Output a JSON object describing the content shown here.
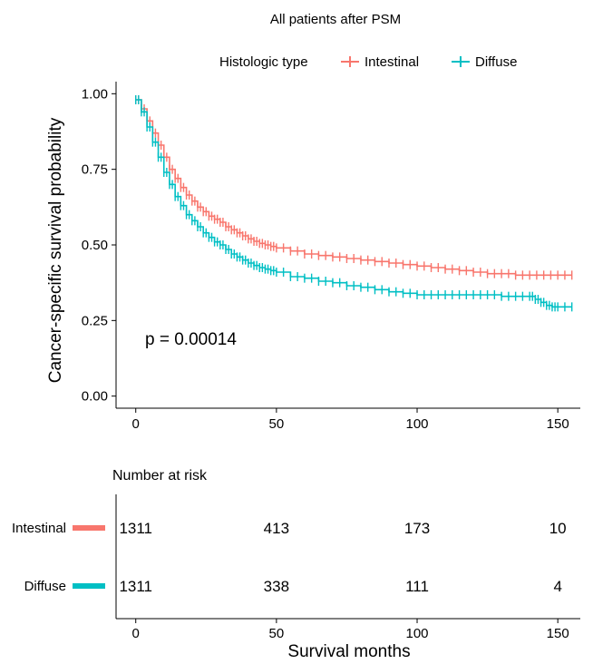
{
  "chart_data": {
    "type": "line",
    "title": "All patients after PSM",
    "xlabel": "",
    "ylabel": "Cancer-specific survival probability",
    "xlim": [
      -7,
      158
    ],
    "ylim": [
      -0.04,
      1.04
    ],
    "x_ticks": [
      "0",
      "50",
      "100",
      "150"
    ],
    "x_tick_values": [
      0,
      50,
      100,
      150
    ],
    "y_ticks": [
      "0.00",
      "0.25",
      "0.50",
      "0.75",
      "1.00"
    ],
    "y_tick_values": [
      0,
      0.25,
      0.5,
      0.75,
      1.0
    ],
    "legend": {
      "title": "Histologic type",
      "position": "top"
    },
    "series": [
      {
        "name": "Intestinal",
        "color": "#F8766D",
        "x": [
          0,
          2,
          4,
          6,
          8,
          10,
          12,
          14,
          16,
          18,
          20,
          22,
          24,
          26,
          28,
          30,
          32,
          34,
          36,
          38,
          40,
          42,
          44,
          46,
          48,
          50,
          55,
          60,
          65,
          70,
          75,
          80,
          85,
          90,
          95,
          100,
          105,
          110,
          115,
          120,
          125,
          130,
          135,
          140,
          145,
          150,
          155
        ],
        "y": [
          0.98,
          0.95,
          0.91,
          0.87,
          0.83,
          0.79,
          0.75,
          0.72,
          0.69,
          0.665,
          0.645,
          0.625,
          0.61,
          0.595,
          0.585,
          0.575,
          0.56,
          0.55,
          0.54,
          0.53,
          0.52,
          0.512,
          0.505,
          0.5,
          0.495,
          0.49,
          0.48,
          0.47,
          0.465,
          0.46,
          0.455,
          0.45,
          0.445,
          0.44,
          0.435,
          0.43,
          0.425,
          0.42,
          0.415,
          0.41,
          0.405,
          0.405,
          0.4,
          0.4,
          0.4,
          0.4,
          0.4
        ]
      },
      {
        "name": "Diffuse",
        "color": "#00BFC4",
        "x": [
          0,
          2,
          4,
          6,
          8,
          10,
          12,
          14,
          16,
          18,
          20,
          22,
          24,
          26,
          28,
          30,
          32,
          34,
          36,
          38,
          40,
          42,
          44,
          46,
          48,
          50,
          55,
          60,
          65,
          70,
          75,
          80,
          85,
          90,
          95,
          100,
          105,
          110,
          115,
          120,
          125,
          130,
          135,
          140,
          142,
          144,
          146,
          148,
          150,
          155
        ],
        "y": [
          0.98,
          0.94,
          0.89,
          0.84,
          0.79,
          0.74,
          0.7,
          0.66,
          0.63,
          0.6,
          0.58,
          0.56,
          0.54,
          0.525,
          0.51,
          0.5,
          0.485,
          0.47,
          0.46,
          0.45,
          0.44,
          0.432,
          0.425,
          0.42,
          0.415,
          0.41,
          0.395,
          0.39,
          0.38,
          0.375,
          0.365,
          0.36,
          0.352,
          0.345,
          0.34,
          0.335,
          0.335,
          0.335,
          0.335,
          0.335,
          0.335,
          0.33,
          0.33,
          0.33,
          0.32,
          0.31,
          0.3,
          0.295,
          0.295,
          0.295
        ]
      }
    ],
    "annotation": "p = 0.00014",
    "risk_table": {
      "title": "Number at risk",
      "xlabel": "Survival months",
      "x_ticks": [
        "0",
        "50",
        "100",
        "150"
      ],
      "x_tick_values": [
        0,
        50,
        100,
        150
      ],
      "rows": [
        {
          "name": "Intestinal",
          "color": "#F8766D",
          "values": [
            "1311",
            "413",
            "173",
            "10"
          ]
        },
        {
          "name": "Diffuse",
          "color": "#00BFC4",
          "values": [
            "1311",
            "338",
            "111",
            "4"
          ]
        }
      ]
    },
    "grid": false
  }
}
